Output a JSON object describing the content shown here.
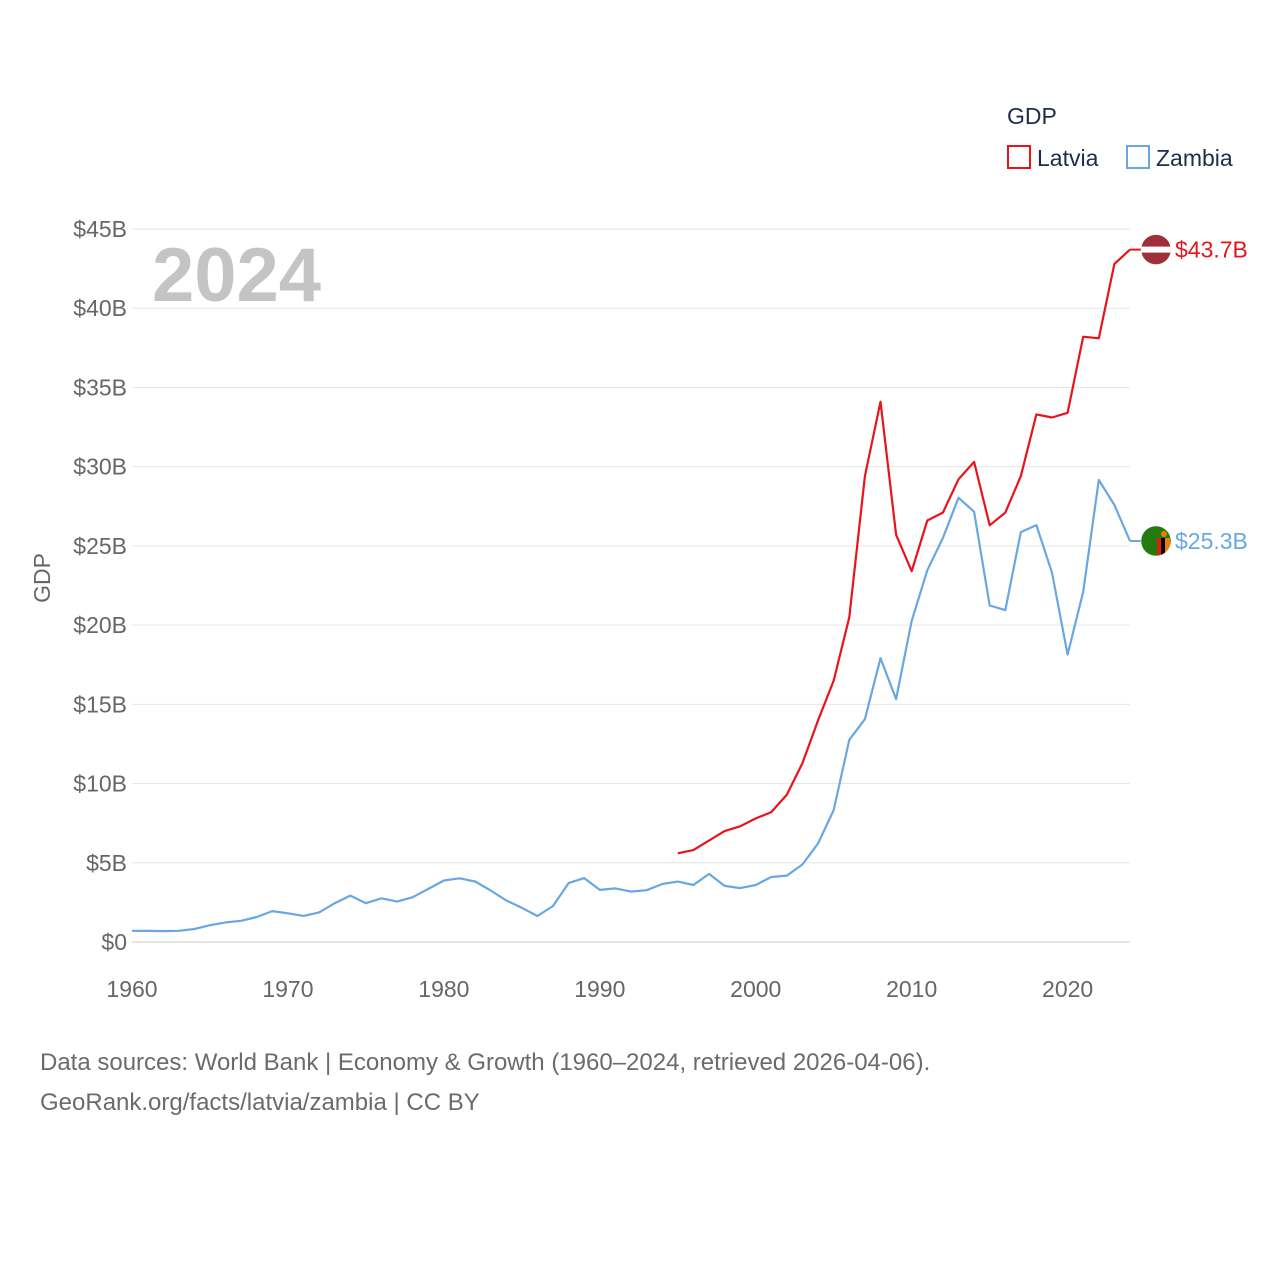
{
  "chart_data": {
    "type": "line",
    "title": "GDP",
    "ylabel": "GDP",
    "xlabel": "",
    "year_label": "2024",
    "xlim": [
      1960,
      2024
    ],
    "ylim": [
      0,
      45
    ],
    "x_ticks": [
      1960,
      1970,
      1980,
      1990,
      2000,
      2010,
      2020
    ],
    "y_ticks": [
      {
        "value": 0,
        "label": "$0"
      },
      {
        "value": 5,
        "label": "$5B"
      },
      {
        "value": 10,
        "label": "$10B"
      },
      {
        "value": 15,
        "label": "$15B"
      },
      {
        "value": 20,
        "label": "$20B"
      },
      {
        "value": 25,
        "label": "$25B"
      },
      {
        "value": 30,
        "label": "$30B"
      },
      {
        "value": 35,
        "label": "$35B"
      },
      {
        "value": 40,
        "label": "$40B"
      },
      {
        "value": 45,
        "label": "$45B"
      }
    ],
    "units": "billions USD",
    "legend": {
      "title": "GDP",
      "position": "top-right"
    },
    "series": [
      {
        "name": "Latvia",
        "color": "#e8141b",
        "end_label": "$43.7B",
        "flag": "latvia-flag",
        "x": [
          1995,
          1996,
          1997,
          1998,
          1999,
          2000,
          2001,
          2002,
          2003,
          2004,
          2005,
          2006,
          2007,
          2008,
          2009,
          2010,
          2011,
          2012,
          2013,
          2014,
          2015,
          2016,
          2017,
          2018,
          2019,
          2020,
          2021,
          2022,
          2023,
          2024
        ],
        "values": [
          5.6,
          5.8,
          6.4,
          7.0,
          7.3,
          7.8,
          8.2,
          9.3,
          11.3,
          14.0,
          16.5,
          20.5,
          29.4,
          34.1,
          25.7,
          23.4,
          26.6,
          27.1,
          29.2,
          30.3,
          26.3,
          27.1,
          29.4,
          33.3,
          33.1,
          33.4,
          38.2,
          38.1,
          42.8,
          43.7
        ]
      },
      {
        "name": "Zambia",
        "color": "#69a7e3",
        "end_label": "$25.3B",
        "flag": "zambia-flag",
        "x": [
          1960,
          1961,
          1962,
          1963,
          1964,
          1965,
          1966,
          1967,
          1968,
          1969,
          1970,
          1971,
          1972,
          1973,
          1974,
          1975,
          1976,
          1977,
          1978,
          1979,
          1980,
          1981,
          1982,
          1983,
          1984,
          1985,
          1986,
          1987,
          1988,
          1989,
          1990,
          1991,
          1992,
          1993,
          1994,
          1995,
          1996,
          1997,
          1998,
          1999,
          2000,
          2001,
          2002,
          2003,
          2004,
          2005,
          2006,
          2007,
          2008,
          2009,
          2010,
          2011,
          2012,
          2013,
          2014,
          2015,
          2016,
          2017,
          2018,
          2019,
          2020,
          2021,
          2022,
          2023,
          2024
        ],
        "values": [
          0.71,
          0.7,
          0.69,
          0.71,
          0.82,
          1.06,
          1.24,
          1.34,
          1.58,
          1.95,
          1.81,
          1.65,
          1.87,
          2.45,
          2.93,
          2.45,
          2.76,
          2.55,
          2.83,
          3.35,
          3.88,
          4.02,
          3.82,
          3.25,
          2.62,
          2.16,
          1.64,
          2.27,
          3.72,
          4.03,
          3.29,
          3.38,
          3.18,
          3.27,
          3.66,
          3.81,
          3.6,
          4.3,
          3.54,
          3.4,
          3.6,
          4.1,
          4.19,
          4.9,
          6.22,
          8.33,
          12.76,
          14.06,
          17.91,
          15.33,
          20.27,
          23.46,
          25.5,
          28.04,
          27.15,
          21.24,
          20.95,
          25.87,
          26.31,
          23.31,
          18.14,
          22.1,
          29.16,
          27.58,
          25.31
        ]
      }
    ]
  },
  "source": {
    "line1": "Data sources: World Bank | Economy & Growth (1960–2024, retrieved 2026-04-06).",
    "line2": "GeoRank.org/facts/latvia/zambia | CC BY"
  }
}
